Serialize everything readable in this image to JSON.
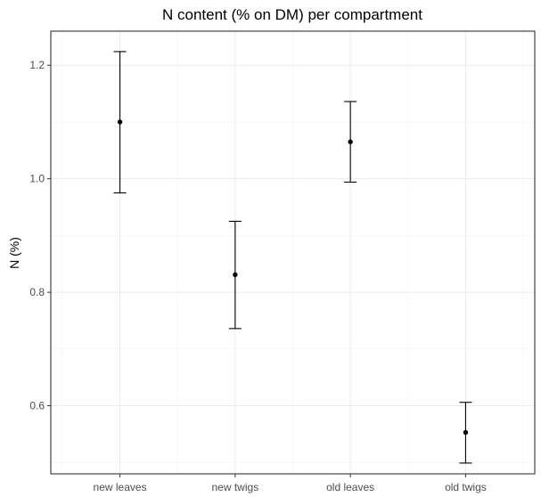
{
  "chart_data": {
    "type": "scatter",
    "title": "N content (% on DM) per compartment",
    "xlabel": "",
    "ylabel": "N (%)",
    "categories": [
      "new leaves",
      "new twigs",
      "old leaves",
      "old twigs"
    ],
    "series": [
      {
        "values": [
          1.1,
          0.831,
          1.065,
          0.553
        ],
        "error_low": [
          0.975,
          0.736,
          0.994,
          0.499
        ],
        "error_high": [
          1.224,
          0.925,
          1.136,
          0.606
        ]
      }
    ],
    "ylim": [
      0.48,
      1.26
    ],
    "yticks": [
      0.6,
      0.8,
      1.0,
      1.2
    ],
    "ytick_labels": [
      "0.6",
      "0.8",
      "1.0",
      "1.2"
    ],
    "grid": true,
    "legend": "none"
  }
}
